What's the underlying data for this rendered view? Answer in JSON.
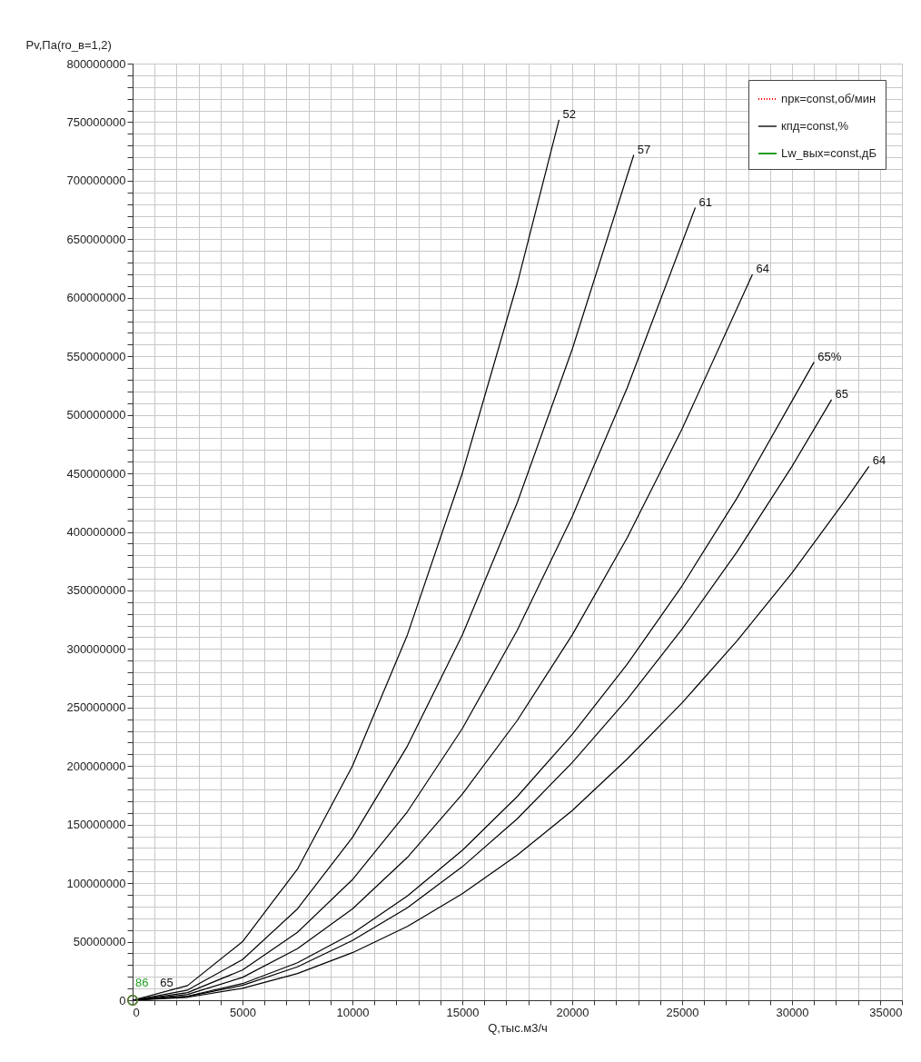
{
  "chart_data": {
    "type": "line",
    "xlabel": "Q,тыс.м3/ч",
    "ylabel": "Pv,Па(ro_в=1,2)",
    "xlim": [
      0,
      35000
    ],
    "ylim": [
      0,
      800000000
    ],
    "xticks": [
      0,
      {
        "value": 1000,
        "label": null
      },
      {
        "value": 2000,
        "label": null
      },
      {
        "value": 3000,
        "label": null
      },
      {
        "value": 4000,
        "label": null
      },
      5000,
      {
        "value": 6000,
        "label": null
      },
      {
        "value": 7000,
        "label": null
      },
      {
        "value": 8000,
        "label": null
      },
      {
        "value": 9000,
        "label": null
      },
      10000,
      {
        "value": 11000,
        "label": null
      },
      {
        "value": 12000,
        "label": null
      },
      {
        "value": 13000,
        "label": null
      },
      {
        "value": 14000,
        "label": null
      },
      15000,
      {
        "value": 16000,
        "label": null
      },
      {
        "value": 17000,
        "label": null
      },
      {
        "value": 18000,
        "label": null
      },
      {
        "value": 19000,
        "label": null
      },
      20000,
      {
        "value": 21000,
        "label": null
      },
      {
        "value": 22000,
        "label": null
      },
      {
        "value": 23000,
        "label": null
      },
      {
        "value": 24000,
        "label": null
      },
      25000,
      {
        "value": 26000,
        "label": null
      },
      {
        "value": 27000,
        "label": null
      },
      {
        "value": 28000,
        "label": null
      },
      {
        "value": 29000,
        "label": null
      },
      30000,
      {
        "value": 31000,
        "label": null
      },
      {
        "value": 32000,
        "label": null
      },
      {
        "value": 33000,
        "label": null
      },
      {
        "value": 34000,
        "label": null
      },
      35000
    ],
    "yticks": [
      0,
      {
        "value": 10000000,
        "label": null
      },
      {
        "value": 20000000,
        "label": null
      },
      {
        "value": 30000000,
        "label": null
      },
      {
        "value": 40000000,
        "label": null
      },
      50000000,
      {
        "value": 60000000,
        "label": null
      },
      {
        "value": 70000000,
        "label": null
      },
      {
        "value": 80000000,
        "label": null
      },
      {
        "value": 90000000,
        "label": null
      },
      100000000,
      {
        "value": 110000000,
        "label": null
      },
      {
        "value": 120000000,
        "label": null
      },
      {
        "value": 130000000,
        "label": null
      },
      {
        "value": 140000000,
        "label": null
      },
      150000000,
      {
        "value": 160000000,
        "label": null
      },
      {
        "value": 170000000,
        "label": null
      },
      {
        "value": 180000000,
        "label": null
      },
      {
        "value": 190000000,
        "label": null
      },
      200000000,
      {
        "value": 210000000,
        "label": null
      },
      {
        "value": 220000000,
        "label": null
      },
      {
        "value": 230000000,
        "label": null
      },
      {
        "value": 240000000,
        "label": null
      },
      250000000,
      {
        "value": 260000000,
        "label": null
      },
      {
        "value": 270000000,
        "label": null
      },
      {
        "value": 280000000,
        "label": null
      },
      {
        "value": 290000000,
        "label": null
      },
      300000000,
      {
        "value": 310000000,
        "label": null
      },
      {
        "value": 320000000,
        "label": null
      },
      {
        "value": 330000000,
        "label": null
      },
      {
        "value": 340000000,
        "label": null
      },
      350000000,
      {
        "value": 360000000,
        "label": null
      },
      {
        "value": 370000000,
        "label": null
      },
      {
        "value": 380000000,
        "label": null
      },
      {
        "value": 390000000,
        "label": null
      },
      400000000,
      {
        "value": 410000000,
        "label": null
      },
      {
        "value": 420000000,
        "label": null
      },
      {
        "value": 430000000,
        "label": null
      },
      {
        "value": 440000000,
        "label": null
      },
      450000000,
      {
        "value": 460000000,
        "label": null
      },
      {
        "value": 470000000,
        "label": null
      },
      {
        "value": 480000000,
        "label": null
      },
      {
        "value": 490000000,
        "label": null
      },
      500000000,
      {
        "value": 510000000,
        "label": null
      },
      {
        "value": 520000000,
        "label": null
      },
      {
        "value": 530000000,
        "label": null
      },
      {
        "value": 540000000,
        "label": null
      },
      550000000,
      {
        "value": 560000000,
        "label": null
      },
      {
        "value": 570000000,
        "label": null
      },
      {
        "value": 580000000,
        "label": null
      },
      {
        "value": 590000000,
        "label": null
      },
      600000000,
      {
        "value": 610000000,
        "label": null
      },
      {
        "value": 620000000,
        "label": null
      },
      {
        "value": 630000000,
        "label": null
      },
      {
        "value": 640000000,
        "label": null
      },
      650000000,
      {
        "value": 660000000,
        "label": null
      },
      {
        "value": 670000000,
        "label": null
      },
      {
        "value": 680000000,
        "label": null
      },
      {
        "value": 690000000,
        "label": null
      },
      700000000,
      {
        "value": 710000000,
        "label": null
      },
      {
        "value": 720000000,
        "label": null
      },
      {
        "value": 730000000,
        "label": null
      },
      {
        "value": 740000000,
        "label": null
      },
      750000000,
      {
        "value": 760000000,
        "label": null
      },
      {
        "value": 770000000,
        "label": null
      },
      {
        "value": 780000000,
        "label": null
      },
      {
        "value": 790000000,
        "label": null
      },
      800000000
    ],
    "grid": true,
    "legend": "top right",
    "marker": "none",
    "line_style": "solid",
    "series": [
      {
        "color": "#000000",
        "x": [
          0,
          2500,
          5000,
          7500,
          10000,
          12500,
          15000,
          17500,
          19400
        ],
        "values": [
          0,
          12500000,
          50000000,
          112000000,
          200000000,
          312000000,
          450000000,
          612000000,
          752000000
        ]
      },
      {
        "color": "#000000",
        "x": [
          0,
          2500,
          5000,
          7500,
          10000,
          12500,
          15000,
          17500,
          20000,
          22800
        ],
        "values": [
          0,
          8700000,
          34700000,
          78000000,
          139000000,
          217000000,
          312000000,
          425000000,
          556000000,
          722000000
        ]
      },
      {
        "color": "#000000",
        "x": [
          0,
          2500,
          5000,
          7500,
          10000,
          12500,
          15000,
          17500,
          20000,
          22500,
          25600
        ],
        "values": [
          0,
          6500000,
          25800000,
          58000000,
          103000000,
          161000000,
          232000000,
          316000000,
          413000000,
          523000000,
          677000000
        ]
      },
      {
        "color": "#000000",
        "x": [
          0,
          2500,
          5000,
          7500,
          10000,
          12500,
          15000,
          17500,
          20000,
          22500,
          25000,
          28200
        ],
        "values": [
          0,
          4900000,
          19500000,
          44000000,
          78000000,
          122000000,
          176000000,
          239000000,
          312000000,
          395000000,
          488000000,
          620000000
        ]
      },
      {
        "color": "#000000",
        "x": [
          0,
          2500,
          5000,
          7500,
          10000,
          12500,
          15000,
          17500,
          20000,
          22500,
          25000,
          27500,
          31000
        ],
        "values": [
          0,
          3500000,
          14200000,
          32000000,
          57000000,
          89000000,
          128000000,
          174000000,
          227000000,
          287000000,
          354000000,
          429000000,
          545000000
        ]
      },
      {
        "color": "#000000",
        "x": [
          0,
          2500,
          5000,
          7500,
          10000,
          12500,
          15000,
          17500,
          20000,
          22500,
          25000,
          27500,
          30000,
          31800
        ],
        "values": [
          0,
          3200000,
          12700000,
          28500000,
          51000000,
          79000000,
          114000000,
          155000000,
          203000000,
          257000000,
          317000000,
          383000000,
          456000000,
          513000000
        ]
      },
      {
        "color": "#000000",
        "x": [
          0,
          2500,
          5000,
          7500,
          10000,
          12500,
          15000,
          17500,
          20000,
          22500,
          25000,
          27500,
          30000,
          32500,
          33500
        ],
        "values": [
          0,
          2500000,
          10200000,
          22800000,
          40600000,
          63000000,
          91000000,
          124000000,
          162000000,
          206000000,
          254000000,
          307000000,
          365000000,
          429000000,
          456000000
        ]
      },
      {
        "name": "nрк=const,об/мин",
        "color": "#ff0000",
        "line_style": "dotted",
        "marker": "circle",
        "x": [
          0
        ],
        "values": [
          0
        ]
      },
      {
        "name": "кпд=const,%",
        "color": "#555555",
        "marker": "circle",
        "x": [
          0
        ],
        "values": [
          0
        ]
      },
      {
        "name": "Lw_вых=const,дБ",
        "color": "#22a022",
        "marker": "circle",
        "x": [
          0
        ],
        "values": [
          0
        ]
      }
    ],
    "annotations": [
      {
        "text": "52",
        "x": 19400,
        "y": 752000000
      },
      {
        "text": "57",
        "x": 22800,
        "y": 722000000
      },
      {
        "text": "61",
        "x": 25600,
        "y": 677000000
      },
      {
        "text": "64",
        "x": 28200,
        "y": 620000000
      },
      {
        "text": "65%",
        "x": 31000,
        "y": 545000000
      },
      {
        "text": "65",
        "x": 31800,
        "y": 513000000
      },
      {
        "text": "64",
        "x": 33500,
        "y": 456000000
      },
      {
        "text": "86",
        "x": 0,
        "y": 0
      },
      {
        "text": "65",
        "x": 1000,
        "y": 0
      }
    ]
  }
}
